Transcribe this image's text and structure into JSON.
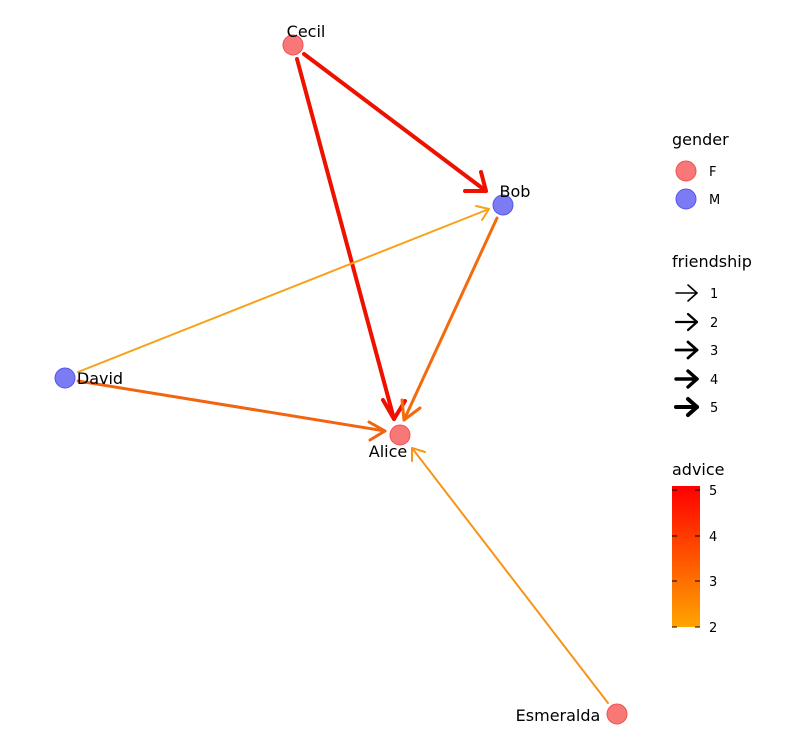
{
  "graph": {
    "nodes": [
      {
        "id": "cecil",
        "label": "Cecil",
        "gender": "F"
      },
      {
        "id": "bob",
        "label": "Bob",
        "gender": "M"
      },
      {
        "id": "david",
        "label": "David",
        "gender": "M"
      },
      {
        "id": "alice",
        "label": "Alice",
        "gender": "F"
      },
      {
        "id": "esmeralda",
        "label": "Esmeralda",
        "gender": "F"
      }
    ],
    "edges": [
      {
        "from": "cecil",
        "to": "bob",
        "friendship": 4,
        "advice": 5
      },
      {
        "from": "cecil",
        "to": "alice",
        "friendship": 4,
        "advice": 5
      },
      {
        "from": "bob",
        "to": "alice",
        "friendship": 3,
        "advice": 3
      },
      {
        "from": "david",
        "to": "bob",
        "friendship": 2,
        "advice": 2
      },
      {
        "from": "david",
        "to": "alice",
        "friendship": 3,
        "advice": 3
      },
      {
        "from": "esmeralda",
        "to": "alice",
        "friendship": 2,
        "advice": 2.3
      }
    ]
  },
  "legend": {
    "gender": {
      "title": "gender",
      "items": [
        {
          "label": "F",
          "color": "#f87777"
        },
        {
          "label": "M",
          "color": "#7b7bf3"
        }
      ]
    },
    "friendship": {
      "title": "friendship",
      "items": [
        "1",
        "2",
        "3",
        "4",
        "5"
      ]
    },
    "advice": {
      "title": "advice",
      "ticks": [
        "5",
        "4",
        "3",
        "2"
      ],
      "color_low": "#ffa500",
      "color_high": "#ff0000"
    }
  }
}
